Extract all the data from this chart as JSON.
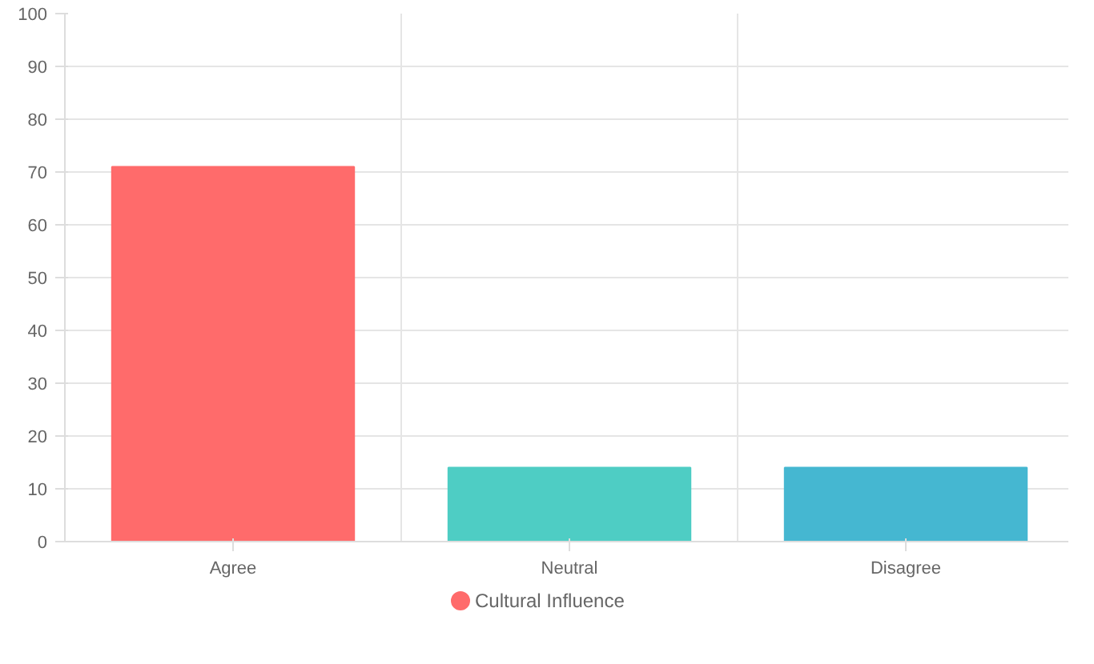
{
  "chart_data": {
    "type": "bar",
    "categories": [
      "Agree",
      "Neutral",
      "Disagree"
    ],
    "series": [
      {
        "name": "Cultural Influence",
        "colors": [
          "#ff6b6b",
          "#4ecdc4",
          "#45b7d1"
        ],
        "values": [
          71,
          14,
          14
        ]
      }
    ],
    "ylim": [
      0,
      100
    ],
    "yticks": [
      0,
      10,
      20,
      30,
      40,
      50,
      60,
      70,
      80,
      90,
      100
    ],
    "grid": true,
    "legend": "bottom"
  }
}
